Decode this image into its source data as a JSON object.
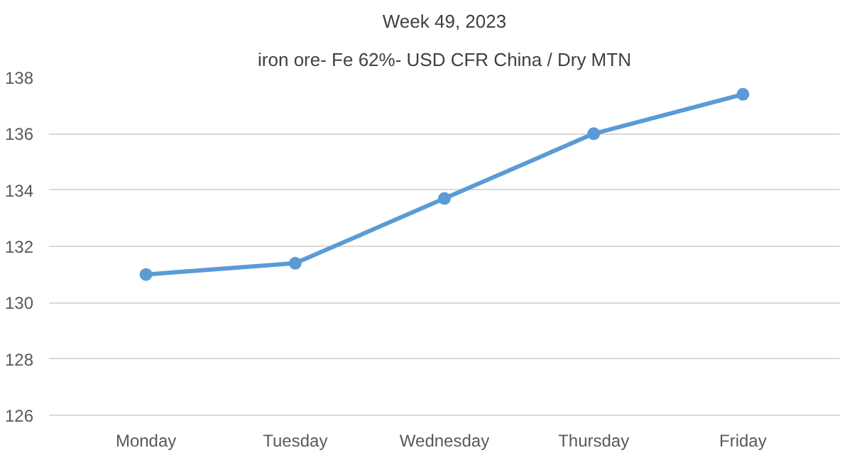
{
  "chart_data": {
    "type": "line",
    "title": "Week 49, 2023",
    "subtitle": "iron ore- Fe 62%- USD CFR China / Dry MTN",
    "categories": [
      "Monday",
      "Tuesday",
      "Wednesday",
      "Thursday",
      "Friday"
    ],
    "series": [
      {
        "color": "#5b9bd5",
        "values": [
          131.0,
          131.4,
          133.7,
          136.0,
          137.4
        ]
      }
    ],
    "ylim": [
      126,
      138
    ],
    "yticks": [
      126,
      128,
      130,
      132,
      134,
      136,
      138
    ],
    "grid": "y",
    "marker": "circle",
    "line_style": "solid"
  }
}
